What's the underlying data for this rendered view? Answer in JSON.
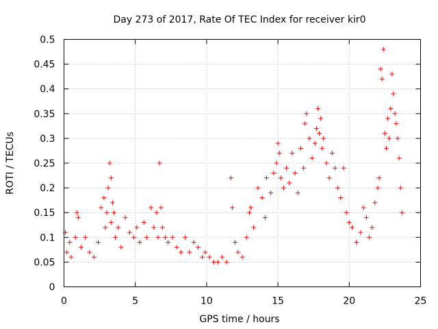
{
  "chart_data": {
    "type": "scatter",
    "title": "Day 273 of 2017, Rate Of TEC Index for receiver kir0",
    "xlabel": "GPS time / hours",
    "ylabel": "ROTI / TECUs",
    "xlim": [
      0,
      25
    ],
    "ylim": [
      0,
      0.5
    ],
    "xticks": [
      0,
      5,
      10,
      15,
      20,
      25
    ],
    "xtick_labels": [
      "0",
      "5",
      "10",
      "15",
      "20",
      "25"
    ],
    "yticks": [
      0,
      0.05,
      0.1,
      0.15,
      0.2,
      0.25,
      0.3,
      0.35,
      0.4,
      0.45,
      0.5
    ],
    "ytick_labels": [
      "0",
      "0.05",
      "0.1",
      "0.15",
      "0.2",
      "0.25",
      "0.3",
      "0.35",
      "0.4",
      "0.45",
      "0.5"
    ],
    "grid": true,
    "marker": "+",
    "color": "#ff0000",
    "series": [
      {
        "name": "kir0",
        "x": [
          0.1,
          0.2,
          0.4,
          0.5,
          0.8,
          0.9,
          1.0,
          1.2,
          1.5,
          1.8,
          2.1,
          2.4,
          2.6,
          2.8,
          2.9,
          3.0,
          3.1,
          3.2,
          3.3,
          3.3,
          3.4,
          3.5,
          3.6,
          3.8,
          4.0,
          4.3,
          4.6,
          4.9,
          5.1,
          5.3,
          5.6,
          5.8,
          6.1,
          6.3,
          6.5,
          6.6,
          6.7,
          6.8,
          6.9,
          7.1,
          7.3,
          7.6,
          7.9,
          8.2,
          8.5,
          8.8,
          9.1,
          9.4,
          9.7,
          9.9,
          10.2,
          10.5,
          10.8,
          11.1,
          11.4,
          11.7,
          11.8,
          12.0,
          12.2,
          12.5,
          12.8,
          13.0,
          13.1,
          13.3,
          13.6,
          13.9,
          14.1,
          14.2,
          14.5,
          14.7,
          14.9,
          15.0,
          15.1,
          15.2,
          15.4,
          15.6,
          15.8,
          16.0,
          16.2,
          16.4,
          16.6,
          16.8,
          16.9,
          17.0,
          17.2,
          17.4,
          17.6,
          17.7,
          17.8,
          17.9,
          18.0,
          18.1,
          18.2,
          18.4,
          18.6,
          18.8,
          19.0,
          19.2,
          19.4,
          19.6,
          19.8,
          20.0,
          20.2,
          20.5,
          20.8,
          21.0,
          21.2,
          21.4,
          21.6,
          21.8,
          22.0,
          22.1,
          22.2,
          22.3,
          22.4,
          22.5,
          22.6,
          22.7,
          22.8,
          22.9,
          23.0,
          23.1,
          23.2,
          23.3,
          23.4,
          23.5,
          23.6,
          23.7
        ],
        "y": [
          0.11,
          0.07,
          0.09,
          0.06,
          0.1,
          0.15,
          0.14,
          0.08,
          0.1,
          0.07,
          0.06,
          0.09,
          0.16,
          0.18,
          0.12,
          0.15,
          0.2,
          0.25,
          0.22,
          0.13,
          0.17,
          0.15,
          0.1,
          0.12,
          0.08,
          0.14,
          0.11,
          0.1,
          0.12,
          0.09,
          0.13,
          0.1,
          0.16,
          0.12,
          0.15,
          0.1,
          0.25,
          0.16,
          0.12,
          0.1,
          0.09,
          0.1,
          0.08,
          0.07,
          0.1,
          0.07,
          0.09,
          0.08,
          0.06,
          0.07,
          0.06,
          0.05,
          0.05,
          0.06,
          0.05,
          0.22,
          0.16,
          0.09,
          0.07,
          0.06,
          0.1,
          0.15,
          0.16,
          0.12,
          0.2,
          0.18,
          0.14,
          0.22,
          0.19,
          0.23,
          0.25,
          0.29,
          0.27,
          0.22,
          0.2,
          0.24,
          0.21,
          0.27,
          0.23,
          0.19,
          0.28,
          0.24,
          0.33,
          0.35,
          0.3,
          0.26,
          0.29,
          0.32,
          0.36,
          0.31,
          0.34,
          0.28,
          0.3,
          0.25,
          0.22,
          0.27,
          0.24,
          0.2,
          0.18,
          0.24,
          0.15,
          0.13,
          0.12,
          0.09,
          0.11,
          0.16,
          0.14,
          0.1,
          0.12,
          0.17,
          0.2,
          0.22,
          0.44,
          0.42,
          0.48,
          0.31,
          0.28,
          0.34,
          0.3,
          0.36,
          0.43,
          0.39,
          0.35,
          0.33,
          0.3,
          0.26,
          0.2,
          0.15
        ]
      }
    ]
  }
}
